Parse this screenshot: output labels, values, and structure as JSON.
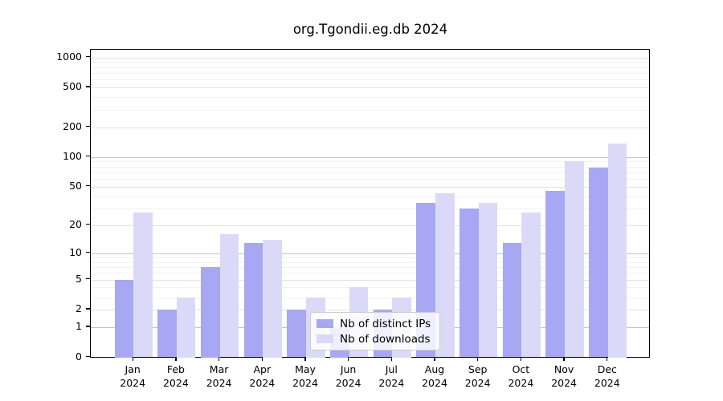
{
  "title": "org.Tgondii.eg.db 2024",
  "chart_data": {
    "type": "bar",
    "title": "org.Tgondii.eg.db 2024",
    "categories": [
      "Jan 2024",
      "Feb 2024",
      "Mar 2024",
      "Apr 2024",
      "May 2024",
      "Jun 2024",
      "Jul 2024",
      "Aug 2024",
      "Sep 2024",
      "Oct 2024",
      "Nov 2024",
      "Dec 2024"
    ],
    "series": [
      {
        "name": "Nb of distinct IPs",
        "color": "#a7a7f3",
        "values": [
          5,
          2,
          7,
          13,
          2,
          1,
          2,
          34,
          30,
          13,
          45,
          78
        ]
      },
      {
        "name": "Nb of downloads",
        "color": "#dadaf8",
        "values": [
          27,
          3,
          16,
          14,
          3,
          4,
          3,
          43,
          34,
          27,
          90,
          138
        ]
      }
    ],
    "xlabel": "",
    "ylabel": "",
    "yscale": "log(1+x)",
    "y_ticks": [
      0,
      1,
      2,
      5,
      10,
      20,
      50,
      100,
      200,
      500,
      1000
    ],
    "ylim": [
      0,
      1220
    ],
    "grid": true,
    "legend_position": "inside-bottom-center"
  },
  "legend": {
    "items": [
      "Nb of distinct IPs",
      "Nb of downloads"
    ]
  }
}
